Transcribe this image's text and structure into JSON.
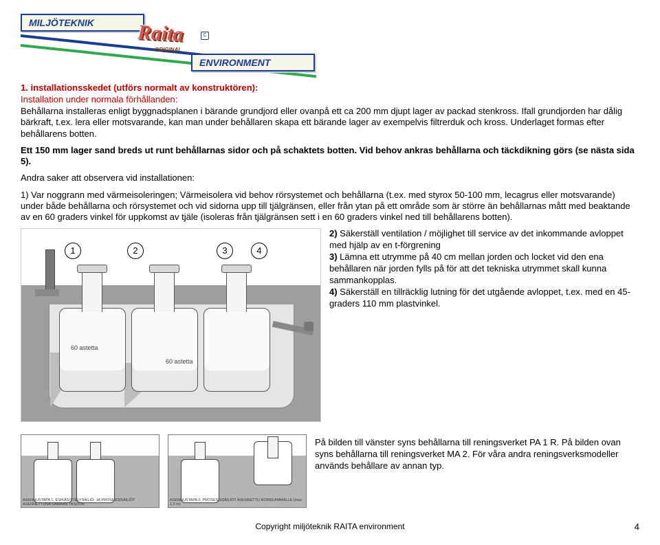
{
  "logo": {
    "top_label": "MILJÖTEKNIK",
    "bottom_label": "ENVIRONMENT",
    "brand": "Raita",
    "sub": "ORIGINAL",
    "mark": "C"
  },
  "heading": "1. installationsskedet (utförs normalt av konstruktören):",
  "subheading": "Installation under normala förhållanden:",
  "para1": "Behållarna installeras enligt byggnadsplanen i bärande grundjord eller ovanpå ett ca 200 mm djupt lager av packad stenkross. Ifall grundjorden har dålig bärkraft, t.ex. lera eller motsvarande, kan man under behållaren skapa ett bärande lager av exempelvis filtrerduk och kross. Underlaget formas efter behållarens botten.",
  "para2_bold": "Ett 150 mm lager sand breds ut runt behållarnas sidor och på schaktets botten. Vid behov ankras behållarna och täckdikning görs (se nästa sida 5).",
  "para3_lead": "Andra saker att observera vid installationen:",
  "para4": "1) Var noggrann med värmeisoleringen; Värmeisolera vid behov rörsystemet och behållarna (t.ex. med styrox 50-100 mm, lecagrus eller motsvarande) under både behållarna och rörsystemet och vid sidorna upp till tjälgränsen, eller från ytan på ett område som är större än behållarnas mått med beaktande av en 60 graders vinkel för uppkomst av tjäle (isoleras från tjälgränsen sett i en 60 graders vinkel ned till behållarens botten).",
  "right_block": "2) Säkerställ ventilation / möjlighet till service av det inkommande avloppet med hjälp av en t-förgrening\n3) Lämna ett utrymme på 40 cm mellan jorden och locket vid den ena behållaren när jorden fylls på för att det tekniska utrymmet skall kunna sammankopplas.\n4) Säkerställ en tillräcklig lutning för det utgående avloppet, t.ex. med en 45-graders 110 mm plastvinkel.",
  "diagram": {
    "markers": [
      "1",
      "2",
      "3",
      "4"
    ],
    "angle_label": "60 astetta"
  },
  "thumbs": {
    "cap1": "ASENNUSTAPA 1: ESIKÄSITTELYSÄILIÖ- JA PROSESSISÄILIÖT ASENNETTUNA SAMAAN TASOON",
    "cap2": "ASENNUSTAPA 2: PROSESSISÄILIÖT ASENNETTU KORKEAMMALLE (max 1,5 m)",
    "text": "På bilden till vänster syns behållarna till reningsverket PA 1 R. På bilden ovan syns behållarna till reningsverket MA 2. För våra andra reningsverksmodeller används behållare av annan typ."
  },
  "footer": "Copyright miljöteknik RAITA environment",
  "page": "4"
}
